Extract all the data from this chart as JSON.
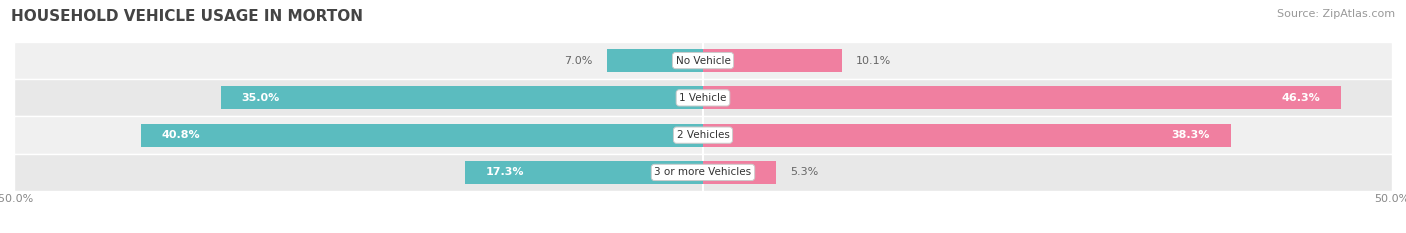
{
  "title": "HOUSEHOLD VEHICLE USAGE IN MORTON",
  "source": "Source: ZipAtlas.com",
  "categories": [
    "No Vehicle",
    "1 Vehicle",
    "2 Vehicles",
    "3 or more Vehicles"
  ],
  "owner_values": [
    7.0,
    35.0,
    40.8,
    17.3
  ],
  "renter_values": [
    10.1,
    46.3,
    38.3,
    5.3
  ],
  "owner_color": "#5bbcbf",
  "renter_color": "#f07fa0",
  "row_bg_colors": [
    "#f0f0f0",
    "#e8e8e8"
  ],
  "xlim": [
    -50,
    50
  ],
  "xticks": [
    -50,
    50
  ],
  "title_fontsize": 11,
  "source_fontsize": 8,
  "bar_height": 0.62,
  "figsize": [
    14.06,
    2.33
  ],
  "dpi": 100
}
